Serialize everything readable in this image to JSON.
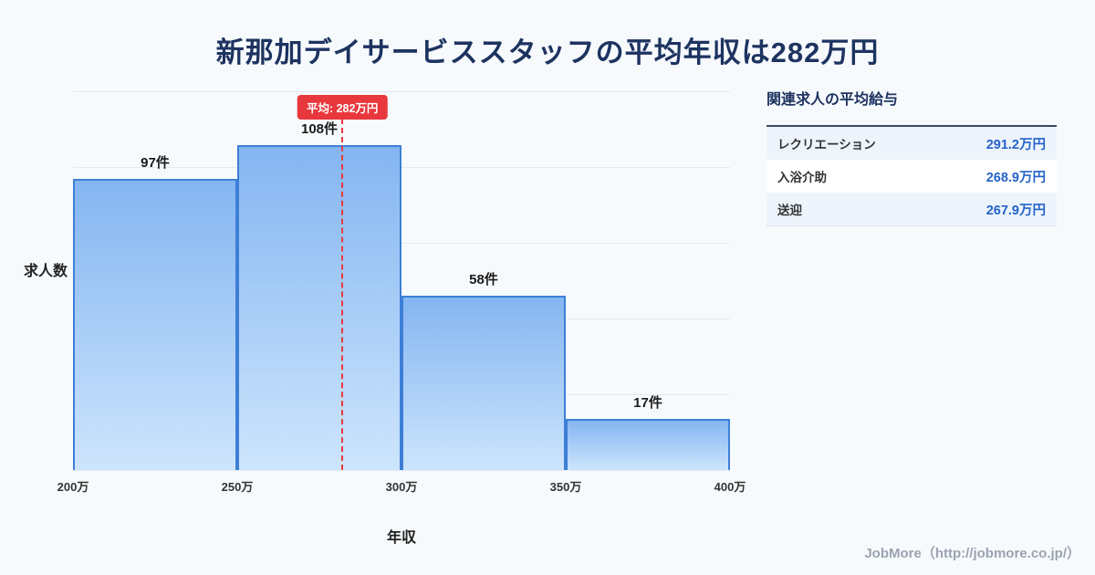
{
  "page": {
    "title": "新那加デイサービススタッフの平均年収は282万円",
    "footer": "JobMore（http://jobmore.co.jp/）"
  },
  "chart_data": {
    "type": "bar",
    "title": "新那加デイサービススタッフの平均年収は282万円",
    "xlabel": "年収",
    "ylabel": "求人数",
    "x_ticks": [
      "200万",
      "250万",
      "300万",
      "350万",
      "400万"
    ],
    "x_range": [
      200,
      400
    ],
    "ylim": [
      0,
      126
    ],
    "grid": true,
    "legend": "none",
    "bins": [
      {
        "range_man": [
          200,
          250
        ],
        "count": 97,
        "label": "97件"
      },
      {
        "range_man": [
          250,
          300
        ],
        "count": 108,
        "label": "108件"
      },
      {
        "range_man": [
          300,
          350
        ],
        "count": 58,
        "label": "58件"
      },
      {
        "range_man": [
          350,
          400
        ],
        "count": 17,
        "label": "17件"
      }
    ],
    "average": {
      "value_man": 282,
      "badge_label": "平均: 282万円"
    },
    "colors": {
      "bar_top": "#84b5f1",
      "bar_bottom": "#cde5fd",
      "bar_border": "#3e7fd6",
      "average_line": "#e8383d",
      "title_text": "#1d3360",
      "value_text": "#2563c8"
    }
  },
  "side_panel": {
    "title": "関連求人の平均給与",
    "rows": [
      {
        "label": "レクリエーション",
        "value": "291.2万円"
      },
      {
        "label": "入浴介助",
        "value": "268.9万円"
      },
      {
        "label": "送迎",
        "value": "267.9万円"
      }
    ]
  }
}
